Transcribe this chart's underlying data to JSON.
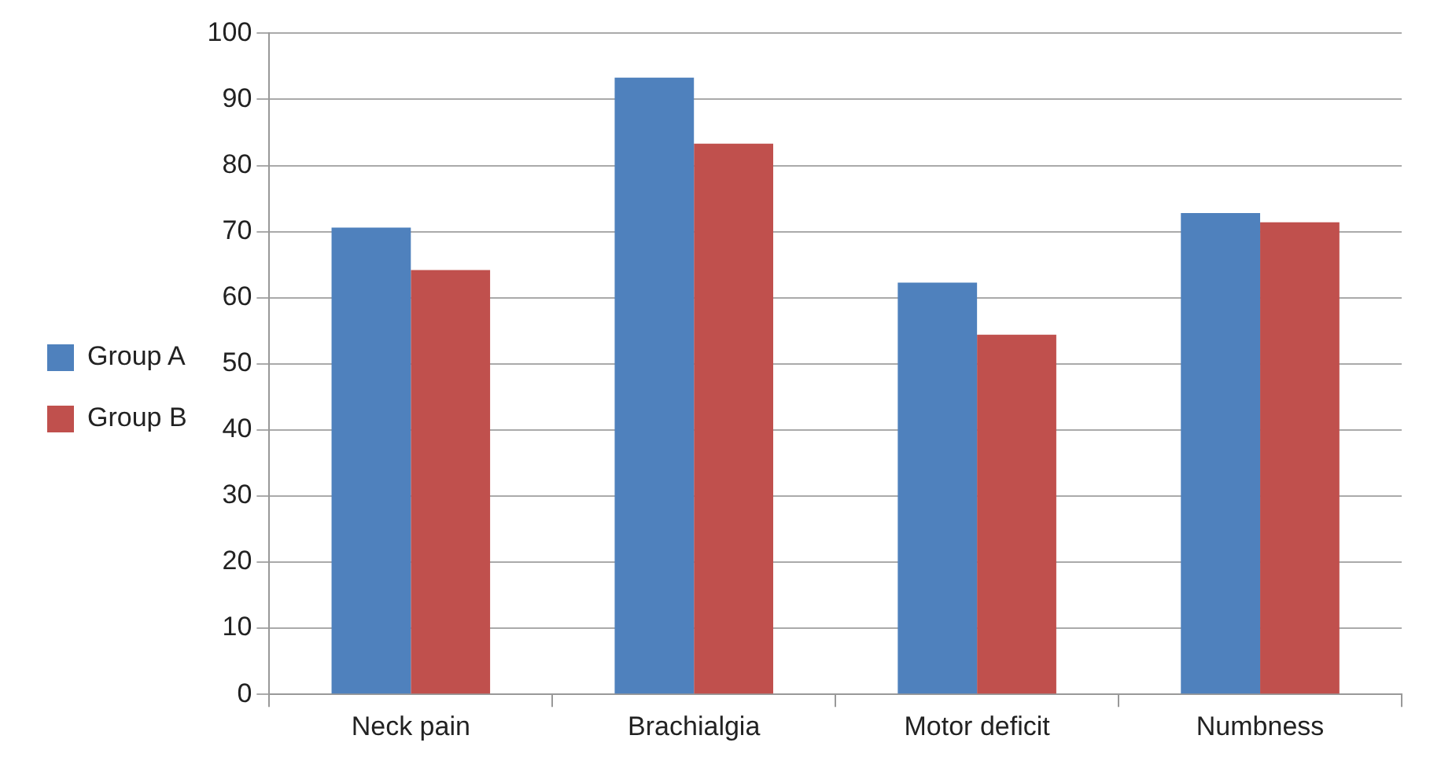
{
  "chart_data": {
    "type": "bar",
    "categories": [
      "Neck pain",
      "Brachialgia",
      "Motor deficit",
      "Numbness"
    ],
    "series": [
      {
        "name": "Group A",
        "color": "#4f81bd",
        "values": [
          70.6,
          93.3,
          62.3,
          72.8
        ]
      },
      {
        "name": "Group B",
        "color": "#c0504d",
        "values": [
          64.2,
          83.3,
          54.4,
          71.4
        ]
      }
    ],
    "ylim": [
      0,
      100
    ],
    "yticks": [
      0,
      10,
      20,
      30,
      40,
      50,
      60,
      70,
      80,
      90,
      100
    ],
    "grid": "y",
    "legend": "left"
  }
}
